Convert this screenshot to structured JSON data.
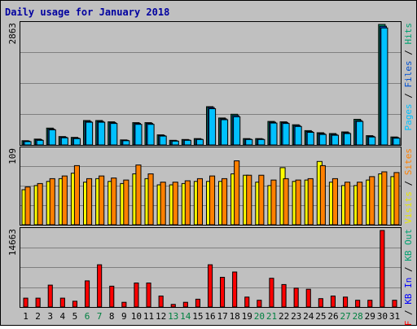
{
  "chart_data": [
    {
      "type": "bar",
      "title": "Daily usage for January 2018",
      "panel": "hits-files-pages",
      "ymax_label": "2863",
      "ylim": [
        0,
        2863
      ],
      "grid": true,
      "legend_parts": [
        {
          "text": "Pages",
          "color": "#00c0ff"
        },
        {
          "text": " / ",
          "color": "#000000"
        },
        {
          "text": "Files",
          "color": "#0050d0"
        },
        {
          "text": " / ",
          "color": "#000000"
        },
        {
          "text": "Hits",
          "color": "#00a070"
        }
      ],
      "categories": [
        "1",
        "2",
        "3",
        "4",
        "5",
        "6",
        "7",
        "8",
        "9",
        "10",
        "11",
        "12",
        "13",
        "14",
        "15",
        "16",
        "17",
        "18",
        "19",
        "20",
        "21",
        "22",
        "23",
        "24",
        "25",
        "26",
        "27",
        "28",
        "29",
        "30",
        "31"
      ],
      "series": [
        {
          "name": "Hits",
          "color": "#00a070",
          "values": [
            100,
            140,
            400,
            200,
            180,
            580,
            580,
            550,
            120,
            530,
            530,
            240,
            110,
            130,
            150,
            910,
            640,
            730,
            150,
            150,
            560,
            550,
            480,
            340,
            290,
            270,
            310,
            610,
            220,
            2863,
            190
          ]
        },
        {
          "name": "Files",
          "color": "#0050d0",
          "values": [
            90,
            125,
            380,
            185,
            165,
            560,
            560,
            530,
            110,
            510,
            510,
            225,
            100,
            120,
            140,
            890,
            620,
            700,
            140,
            140,
            540,
            530,
            460,
            320,
            270,
            250,
            290,
            580,
            205,
            2820,
            175
          ]
        },
        {
          "name": "Pages",
          "color": "#00c0ff",
          "values": [
            80,
            110,
            360,
            170,
            150,
            540,
            540,
            510,
            100,
            490,
            490,
            210,
            90,
            110,
            130,
            860,
            600,
            670,
            130,
            130,
            520,
            510,
            440,
            300,
            250,
            230,
            270,
            560,
            190,
            2780,
            160
          ]
        }
      ]
    },
    {
      "type": "bar",
      "panel": "visits-sites",
      "ymax_label": "109",
      "ylim": [
        0,
        109
      ],
      "grid": true,
      "legend_parts": [
        {
          "text": "Visits",
          "color": "#e8e800"
        },
        {
          "text": " / ",
          "color": "#000000"
        },
        {
          "text": "Sites",
          "color": "#ff8000"
        }
      ],
      "categories": [
        "1",
        "2",
        "3",
        "4",
        "5",
        "6",
        "7",
        "8",
        "9",
        "10",
        "11",
        "12",
        "13",
        "14",
        "15",
        "16",
        "17",
        "18",
        "19",
        "20",
        "21",
        "22",
        "23",
        "24",
        "25",
        "26",
        "27",
        "28",
        "29",
        "30",
        "31"
      ],
      "series": [
        {
          "name": "Visits",
          "color": "#ffff00",
          "values": [
            51,
            57,
            63,
            67,
            75,
            62,
            67,
            63,
            60,
            74,
            67,
            58,
            58,
            60,
            63,
            63,
            63,
            74,
            72,
            62,
            57,
            83,
            63,
            65,
            92,
            62,
            57,
            57,
            65,
            74,
            70
          ]
        },
        {
          "name": "Sites",
          "color": "#ff8000",
          "values": [
            55,
            60,
            67,
            71,
            86,
            67,
            71,
            68,
            65,
            87,
            74,
            62,
            62,
            64,
            67,
            71,
            67,
            93,
            72,
            72,
            65,
            67,
            65,
            67,
            86,
            67,
            62,
            62,
            70,
            77,
            76
          ]
        }
      ]
    },
    {
      "type": "bar",
      "panel": "kbytes",
      "ymax_label": "14663",
      "ylim": [
        0,
        14663
      ],
      "grid": true,
      "legend_parts": [
        {
          "text": "KB F",
          "color": "#ff0000"
        },
        {
          "text": " / ",
          "color": "#000000"
        },
        {
          "text": "KB In",
          "color": "#0000ff"
        },
        {
          "text": " / ",
          "color": "#000000"
        },
        {
          "text": "KB Out",
          "color": "#00a070"
        }
      ],
      "categories": [
        "1",
        "2",
        "3",
        "4",
        "5",
        "6",
        "7",
        "8",
        "9",
        "10",
        "11",
        "12",
        "13",
        "14",
        "15",
        "16",
        "17",
        "18",
        "19",
        "20",
        "21",
        "22",
        "23",
        "24",
        "25",
        "26",
        "27",
        "28",
        "29",
        "30",
        "31"
      ],
      "series": [
        {
          "name": "KB F",
          "color": "#ff0000",
          "values": [
            1700,
            1700,
            4200,
            1700,
            1100,
            5000,
            8100,
            4000,
            900,
            4600,
            4600,
            2100,
            500,
            900,
            1500,
            8100,
            5700,
            6700,
            1900,
            1300,
            5500,
            4300,
            3600,
            3400,
            1600,
            2100,
            1900,
            1300,
            1300,
            14663,
            1300
          ]
        }
      ]
    }
  ],
  "x_labels": [
    {
      "text": "1",
      "color": "#000000"
    },
    {
      "text": "2",
      "color": "#000000"
    },
    {
      "text": "3",
      "color": "#000000"
    },
    {
      "text": "4",
      "color": "#000000"
    },
    {
      "text": "5",
      "color": "#000000"
    },
    {
      "text": "6",
      "color": "#008040"
    },
    {
      "text": "7",
      "color": "#008040"
    },
    {
      "text": "8",
      "color": "#000000"
    },
    {
      "text": "9",
      "color": "#000000"
    },
    {
      "text": "10",
      "color": "#000000"
    },
    {
      "text": "11",
      "color": "#000000"
    },
    {
      "text": "12",
      "color": "#000000"
    },
    {
      "text": "13",
      "color": "#008040"
    },
    {
      "text": "14",
      "color": "#008040"
    },
    {
      "text": "15",
      "color": "#000000"
    },
    {
      "text": "16",
      "color": "#000000"
    },
    {
      "text": "17",
      "color": "#000000"
    },
    {
      "text": "18",
      "color": "#000000"
    },
    {
      "text": "19",
      "color": "#000000"
    },
    {
      "text": "20",
      "color": "#008040"
    },
    {
      "text": "21",
      "color": "#008040"
    },
    {
      "text": "22",
      "color": "#000000"
    },
    {
      "text": "23",
      "color": "#000000"
    },
    {
      "text": "24",
      "color": "#000000"
    },
    {
      "text": "25",
      "color": "#000000"
    },
    {
      "text": "26",
      "color": "#000000"
    },
    {
      "text": "27",
      "color": "#008040"
    },
    {
      "text": "28",
      "color": "#008040"
    },
    {
      "text": "29",
      "color": "#000000"
    },
    {
      "text": "30",
      "color": "#000000"
    },
    {
      "text": "31",
      "color": "#000000"
    }
  ],
  "colors": {
    "background": "#c0c0c0",
    "title": "#0000a0",
    "grid": "#808080",
    "frame": "#000000"
  }
}
